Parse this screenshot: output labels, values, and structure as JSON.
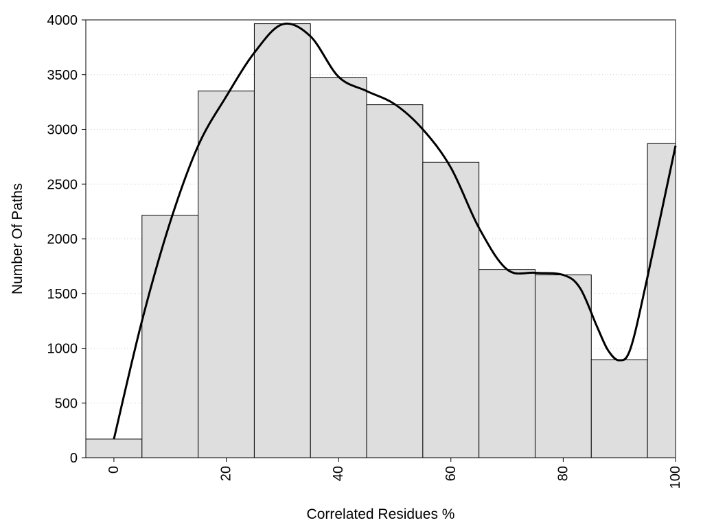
{
  "chart_data": {
    "type": "bar",
    "xlabel": "Correlated Residues %",
    "ylabel": "Number Of Paths",
    "xlim": [
      -5,
      100
    ],
    "ylim": [
      0,
      4000
    ],
    "bin_width": 10,
    "x": [
      0,
      10,
      20,
      30,
      40,
      50,
      60,
      70,
      80,
      90,
      100
    ],
    "values": [
      170,
      2215,
      3350,
      3965,
      3475,
      3225,
      2700,
      1720,
      1670,
      895,
      2870
    ],
    "x_ticks": [
      0,
      20,
      40,
      60,
      80,
      100
    ],
    "x_tick_labels": [
      "0",
      "20",
      "40",
      "60",
      "80",
      "100"
    ],
    "y_ticks": [
      0,
      500,
      1000,
      1500,
      2000,
      2500,
      3000,
      3500,
      4000
    ],
    "y_tick_labels": [
      "0",
      "500",
      "1000",
      "1500",
      "2000",
      "2500",
      "3000",
      "3500",
      "4000"
    ],
    "grid": "horizontal dotted",
    "bar_color": "#dedede",
    "bar_edge_color": "#000000",
    "curve": {
      "type": "line",
      "x": [
        0,
        5,
        10,
        15,
        20,
        25,
        30,
        35,
        40,
        45,
        50,
        55,
        60,
        65,
        70,
        75,
        80,
        83,
        86,
        88,
        90,
        92,
        95,
        100
      ],
      "y": [
        170,
        1250,
        2150,
        2850,
        3300,
        3700,
        3960,
        3850,
        3480,
        3350,
        3230,
        3000,
        2650,
        2100,
        1720,
        1690,
        1670,
        1550,
        1200,
        980,
        890,
        1000,
        1650,
        2850
      ],
      "color": "#000000"
    }
  }
}
